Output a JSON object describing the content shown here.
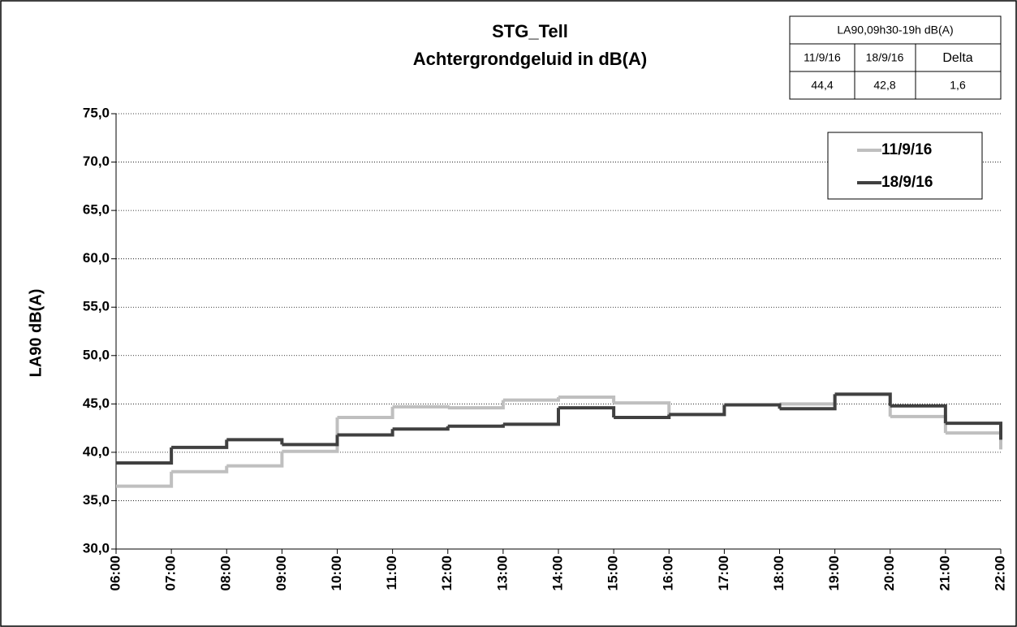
{
  "chart_data": {
    "type": "step-line",
    "title": "STG_Tell",
    "subtitle": "Achtergrondgeluid  in dB(A)",
    "y_label": "LA90  dB(A)",
    "categories": [
      "06:00",
      "07:00",
      "08:00",
      "09:00",
      "10:00",
      "11:00",
      "12:00",
      "13:00",
      "14:00",
      "15:00",
      "16:00",
      "17:00",
      "18:00",
      "19:00",
      "20:00",
      "21:00",
      "22:00"
    ],
    "series": [
      {
        "name": "11/9/16",
        "color": "#bfbfbf",
        "values": [
          36.5,
          38.0,
          38.6,
          40.1,
          43.6,
          44.7,
          44.6,
          45.4,
          45.7,
          45.1,
          43.9,
          44.9,
          45.0,
          46.0,
          43.7,
          42.0,
          40.3
        ]
      },
      {
        "name": "18/9/16",
        "color": "#404040",
        "values": [
          38.9,
          40.5,
          41.3,
          40.8,
          41.8,
          42.4,
          42.7,
          42.9,
          44.6,
          43.6,
          43.9,
          44.9,
          44.5,
          46.0,
          44.8,
          43.0,
          41.3
        ]
      }
    ],
    "ylim": [
      30,
      75
    ],
    "yticks": [
      {
        "value": 30,
        "label": "30,0"
      },
      {
        "value": 35,
        "label": "35,0"
      },
      {
        "value": 40,
        "label": "40,0"
      },
      {
        "value": 45,
        "label": "45,0"
      },
      {
        "value": 50,
        "label": "50,0"
      },
      {
        "value": 55,
        "label": "55,0"
      },
      {
        "value": 60,
        "label": "60,0"
      },
      {
        "value": 65,
        "label": "65,0"
      },
      {
        "value": 70,
        "label": "70,0"
      },
      {
        "value": 75,
        "label": "75,0"
      }
    ],
    "grid": true,
    "legend": "top-right"
  },
  "table": {
    "header": "LA90,09h30-19h dB(A)",
    "rows": [
      [
        "11/9/16",
        "18/9/16",
        "Delta"
      ],
      [
        "44,4",
        "42,8",
        "1,6"
      ]
    ]
  }
}
